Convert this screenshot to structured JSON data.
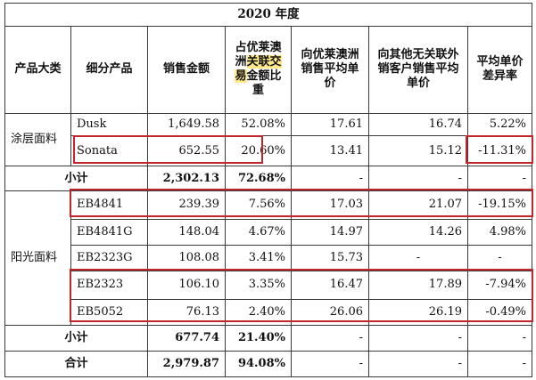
{
  "table": {
    "year_header": "2020 年度",
    "headers": {
      "category": "产品大类",
      "subcategory": "细分产品",
      "sales_amount": "销售金额",
      "share_prefix": "占优莱澳洲",
      "share_highlight": "关联交易",
      "share_suffix": "金额比重",
      "price_youlai": "向优莱澳洲销售平均单价",
      "price_other": "向其他无关联外销客户销售平均单价",
      "price_diff": "平均单价差异率"
    },
    "groups": {
      "coated": "涂层面料",
      "sunshade": "阳光面料"
    },
    "rows": [
      {
        "product": "Dusk",
        "amount": "1,649.58",
        "share": "52.08%",
        "p1": "17.61",
        "p2": "16.74",
        "diff": "5.22%"
      },
      {
        "product": "Sonata",
        "amount": "652.55",
        "share": "20.60%",
        "p1": "13.41",
        "p2": "15.12",
        "diff": "-11.31%"
      },
      {
        "product": "小计",
        "amount": "2,302.13",
        "share": "72.68%",
        "p1": "-",
        "p2": "-",
        "diff": "-"
      },
      {
        "product": "EB4841",
        "amount": "239.39",
        "share": "7.56%",
        "p1": "17.03",
        "p2": "21.07",
        "diff": "-19.15%"
      },
      {
        "product": "EB4841G",
        "amount": "148.04",
        "share": "4.67%",
        "p1": "14.97",
        "p2": "14.26",
        "diff": "4.98%"
      },
      {
        "product": "EB2323G",
        "amount": "108.08",
        "share": "3.41%",
        "p1": "15.73",
        "p2": "-",
        "diff": "-"
      },
      {
        "product": "EB2323",
        "amount": "106.10",
        "share": "3.35%",
        "p1": "16.47",
        "p2": "17.89",
        "diff": "-7.94%"
      },
      {
        "product": "EB5052",
        "amount": "76.13",
        "share": "2.40%",
        "p1": "26.06",
        "p2": "26.19",
        "diff": "-0.49%"
      },
      {
        "product": "小计",
        "amount": "677.74",
        "share": "21.40%",
        "p1": "-",
        "p2": "-",
        "diff": "-"
      },
      {
        "product": "合计",
        "amount": "2,979.87",
        "share": "94.08%",
        "p1": "-",
        "p2": "-",
        "diff": "-"
      }
    ]
  },
  "highlight_color": "#ffe98a",
  "frame_color": "#c0262c"
}
